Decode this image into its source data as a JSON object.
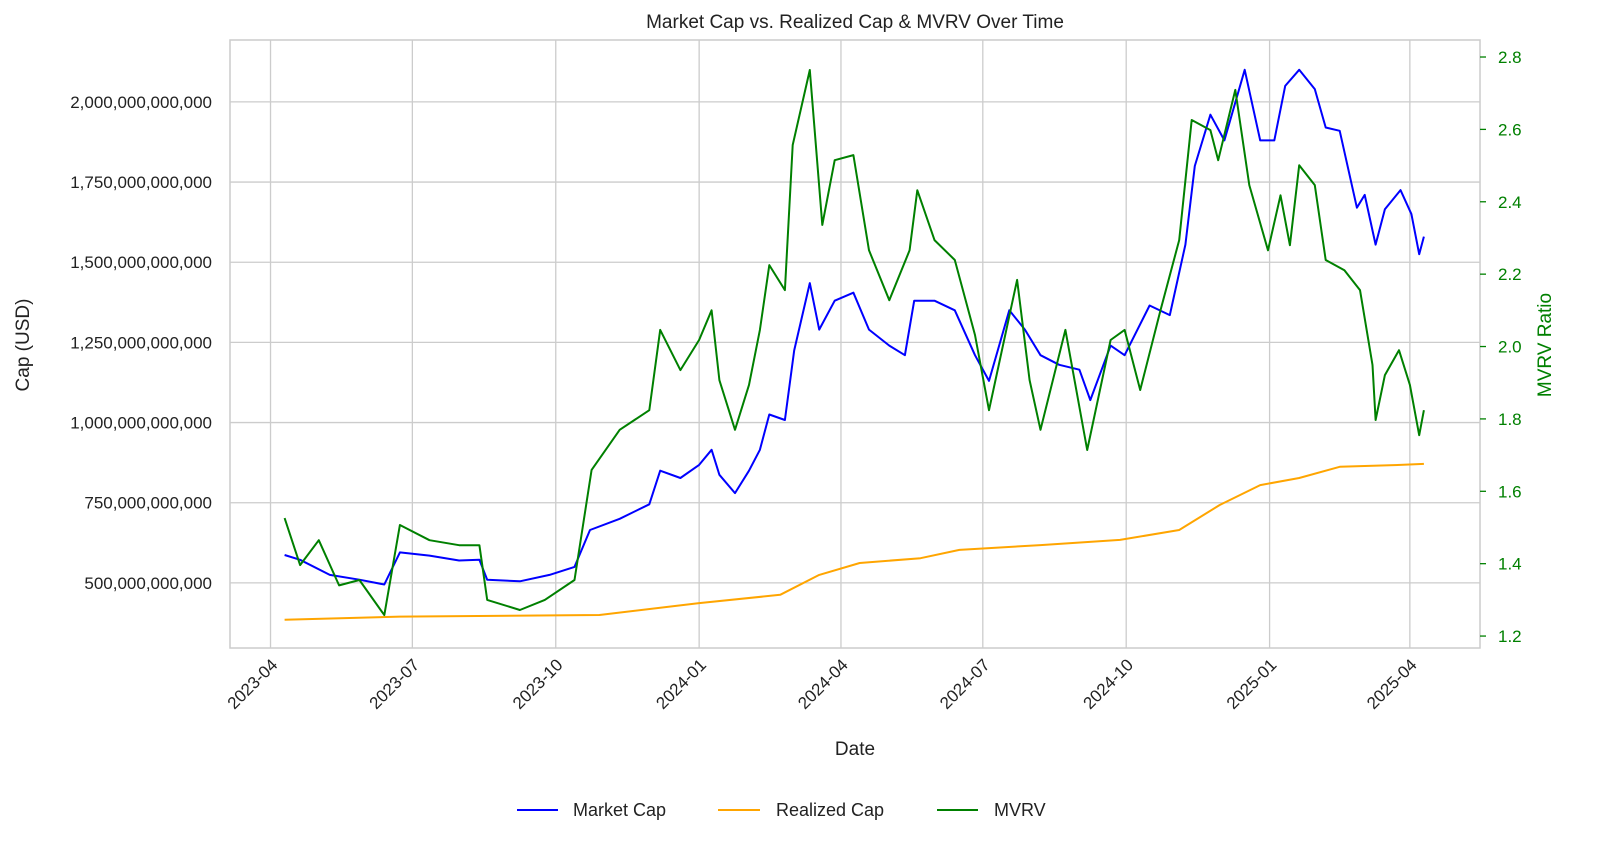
{
  "chart_data": {
    "type": "line",
    "title": "Market Cap vs. Realized Cap & MVRV Over Time",
    "xlabel": "Date",
    "ylabel_left": "Cap (USD)",
    "ylabel_right": "MVRV Ratio",
    "xlim": [
      "2023-03-06",
      "2025-05-16"
    ],
    "ylim_left": [
      297000000000,
      2193000000000
    ],
    "ylim_right": [
      1.167,
      2.847
    ],
    "grid": true,
    "legend_position": "bottom-center",
    "x_ticks": [
      "2023-04",
      "2023-07",
      "2023-10",
      "2024-01",
      "2024-04",
      "2024-07",
      "2024-10",
      "2025-01",
      "2025-04"
    ],
    "y_ticks_left": [
      {
        "value": 500000000000,
        "label": "500,000,000,000"
      },
      {
        "value": 750000000000,
        "label": "750,000,000,000"
      },
      {
        "value": 1000000000000,
        "label": "1,000,000,000,000"
      },
      {
        "value": 1250000000000,
        "label": "1,250,000,000,000"
      },
      {
        "value": 1500000000000,
        "label": "1,500,000,000,000"
      },
      {
        "value": 1750000000000,
        "label": "1,750,000,000,000"
      },
      {
        "value": 2000000000000,
        "label": "2,000,000,000,000"
      }
    ],
    "y_ticks_right": [
      {
        "value": 1.2,
        "label": "1.2"
      },
      {
        "value": 1.4,
        "label": "1.4"
      },
      {
        "value": 1.6,
        "label": "1.6"
      },
      {
        "value": 1.8,
        "label": "1.8"
      },
      {
        "value": 2.0,
        "label": "2.0"
      },
      {
        "value": 2.2,
        "label": "2.2"
      },
      {
        "value": 2.4,
        "label": "2.4"
      },
      {
        "value": 2.6,
        "label": "2.6"
      },
      {
        "value": 2.8,
        "label": "2.8"
      }
    ],
    "series": [
      {
        "name": "Market Cap",
        "axis": "left",
        "color": "#0000ff",
        "unit": "billion USD",
        "points": [
          [
            "2023-04-10",
            587
          ],
          [
            "2023-04-20",
            572
          ],
          [
            "2023-05-09",
            525
          ],
          [
            "2023-05-28",
            510
          ],
          [
            "2023-06-13",
            495
          ],
          [
            "2023-06-23",
            595
          ],
          [
            "2023-07-12",
            585
          ],
          [
            "2023-07-31",
            570
          ],
          [
            "2023-08-13",
            572
          ],
          [
            "2023-08-18",
            510
          ],
          [
            "2023-09-08",
            505
          ],
          [
            "2023-09-27",
            525
          ],
          [
            "2023-10-13",
            550
          ],
          [
            "2023-10-23",
            665
          ],
          [
            "2023-11-11",
            700
          ],
          [
            "2023-11-30",
            745
          ],
          [
            "2023-12-07",
            850
          ],
          [
            "2023-12-20",
            827
          ],
          [
            "2024-01-01",
            868
          ],
          [
            "2024-01-09",
            915
          ],
          [
            "2024-01-14",
            837
          ],
          [
            "2024-01-24",
            780
          ],
          [
            "2024-02-02",
            850
          ],
          [
            "2024-02-09",
            915
          ],
          [
            "2024-02-15",
            1025
          ],
          [
            "2024-02-25",
            1008
          ],
          [
            "2024-03-02",
            1225
          ],
          [
            "2024-03-12",
            1435
          ],
          [
            "2024-03-18",
            1290
          ],
          [
            "2024-03-28",
            1380
          ],
          [
            "2024-04-09",
            1405
          ],
          [
            "2024-04-19",
            1290
          ],
          [
            "2024-05-02",
            1240
          ],
          [
            "2024-05-12",
            1210
          ],
          [
            "2024-05-18",
            1380
          ],
          [
            "2024-05-31",
            1380
          ],
          [
            "2024-06-13",
            1350
          ],
          [
            "2024-06-26",
            1210
          ],
          [
            "2024-07-05",
            1130
          ],
          [
            "2024-07-18",
            1350
          ],
          [
            "2024-07-28",
            1290
          ],
          [
            "2024-08-07",
            1210
          ],
          [
            "2024-08-19",
            1180
          ],
          [
            "2024-09-01",
            1165
          ],
          [
            "2024-09-08",
            1070
          ],
          [
            "2024-09-21",
            1240
          ],
          [
            "2024-09-30",
            1210
          ],
          [
            "2024-10-16",
            1365
          ],
          [
            "2024-10-29",
            1335
          ],
          [
            "2024-11-08",
            1555
          ],
          [
            "2024-11-14",
            1800
          ],
          [
            "2024-11-24",
            1960
          ],
          [
            "2024-12-03",
            1880
          ],
          [
            "2024-12-16",
            2100
          ],
          [
            "2024-12-26",
            1880
          ],
          [
            "2025-01-04",
            1880
          ],
          [
            "2025-01-11",
            2050
          ],
          [
            "2025-01-20",
            2100
          ],
          [
            "2025-01-30",
            2040
          ],
          [
            "2025-02-06",
            1920
          ],
          [
            "2025-02-15",
            1910
          ],
          [
            "2025-02-26",
            1670
          ],
          [
            "2025-03-03",
            1710
          ],
          [
            "2025-03-10",
            1555
          ],
          [
            "2025-03-16",
            1665
          ],
          [
            "2025-03-26",
            1725
          ],
          [
            "2025-04-02",
            1650
          ],
          [
            "2025-04-07",
            1525
          ],
          [
            "2025-04-10",
            1580
          ]
        ]
      },
      {
        "name": "Realized Cap",
        "axis": "left",
        "color": "#ffa500",
        "unit": "billion USD",
        "points": [
          [
            "2023-04-10",
            385
          ],
          [
            "2023-06-23",
            395
          ],
          [
            "2023-10-29",
            400
          ],
          [
            "2024-01-01",
            437
          ],
          [
            "2024-02-22",
            463
          ],
          [
            "2024-03-18",
            525
          ],
          [
            "2024-04-13",
            562
          ],
          [
            "2024-05-22",
            577
          ],
          [
            "2024-06-16",
            603
          ],
          [
            "2024-08-07",
            618
          ],
          [
            "2024-09-27",
            634
          ],
          [
            "2024-11-04",
            665
          ],
          [
            "2024-11-30",
            743
          ],
          [
            "2024-12-26",
            805
          ],
          [
            "2025-01-20",
            827
          ],
          [
            "2025-02-15",
            862
          ],
          [
            "2025-03-26",
            868
          ],
          [
            "2025-04-10",
            871
          ]
        ]
      },
      {
        "name": "MVRV",
        "axis": "right",
        "color": "#008000",
        "unit": "ratio",
        "points": [
          [
            "2023-04-10",
            1.526
          ],
          [
            "2023-04-20",
            1.396
          ],
          [
            "2023-05-02",
            1.465
          ],
          [
            "2023-05-15",
            1.34
          ],
          [
            "2023-05-28",
            1.355
          ],
          [
            "2023-06-13",
            1.258
          ],
          [
            "2023-06-23",
            1.507
          ],
          [
            "2023-07-12",
            1.465
          ],
          [
            "2023-07-31",
            1.451
          ],
          [
            "2023-08-13",
            1.451
          ],
          [
            "2023-08-18",
            1.3
          ],
          [
            "2023-09-08",
            1.272
          ],
          [
            "2023-09-24",
            1.3
          ],
          [
            "2023-10-13",
            1.355
          ],
          [
            "2023-10-24",
            1.659
          ],
          [
            "2023-11-11",
            1.77
          ],
          [
            "2023-11-30",
            1.824
          ],
          [
            "2023-12-07",
            2.046
          ],
          [
            "2023-12-20",
            1.935
          ],
          [
            "2024-01-01",
            2.018
          ],
          [
            "2024-01-09",
            2.1
          ],
          [
            "2024-01-14",
            1.907
          ],
          [
            "2024-01-24",
            1.77
          ],
          [
            "2024-02-02",
            1.894
          ],
          [
            "2024-02-09",
            2.046
          ],
          [
            "2024-02-15",
            2.225
          ],
          [
            "2024-02-25",
            2.156
          ],
          [
            "2024-03-01",
            2.557
          ],
          [
            "2024-03-12",
            2.764
          ],
          [
            "2024-03-20",
            2.336
          ],
          [
            "2024-03-28",
            2.515
          ],
          [
            "2024-04-09",
            2.529
          ],
          [
            "2024-04-19",
            2.266
          ],
          [
            "2024-05-02",
            2.128
          ],
          [
            "2024-05-15",
            2.266
          ],
          [
            "2024-05-20",
            2.432
          ],
          [
            "2024-05-31",
            2.294
          ],
          [
            "2024-06-13",
            2.239
          ],
          [
            "2024-06-26",
            2.032
          ],
          [
            "2024-07-05",
            1.824
          ],
          [
            "2024-07-23",
            2.184
          ],
          [
            "2024-07-31",
            1.907
          ],
          [
            "2024-08-07",
            1.77
          ],
          [
            "2024-08-23",
            2.046
          ],
          [
            "2024-09-06",
            1.714
          ],
          [
            "2024-09-21",
            2.018
          ],
          [
            "2024-09-30",
            2.046
          ],
          [
            "2024-10-10",
            1.88
          ],
          [
            "2024-10-23",
            2.1
          ],
          [
            "2024-11-04",
            2.294
          ],
          [
            "2024-11-12",
            2.626
          ],
          [
            "2024-11-24",
            2.598
          ],
          [
            "2024-11-29",
            2.515
          ],
          [
            "2024-12-10",
            2.709
          ],
          [
            "2024-12-19",
            2.446
          ],
          [
            "2024-12-31",
            2.266
          ],
          [
            "2025-01-08",
            2.418
          ],
          [
            "2025-01-14",
            2.28
          ],
          [
            "2025-01-20",
            2.501
          ],
          [
            "2025-01-30",
            2.446
          ],
          [
            "2025-02-06",
            2.239
          ],
          [
            "2025-02-18",
            2.211
          ],
          [
            "2025-02-28",
            2.156
          ],
          [
            "2025-03-08",
            1.949
          ],
          [
            "2025-03-10",
            1.797
          ],
          [
            "2025-03-16",
            1.921
          ],
          [
            "2025-03-25",
            1.99
          ],
          [
            "2025-04-01",
            1.894
          ],
          [
            "2025-04-07",
            1.755
          ],
          [
            "2025-04-10",
            1.824
          ]
        ]
      }
    ]
  }
}
